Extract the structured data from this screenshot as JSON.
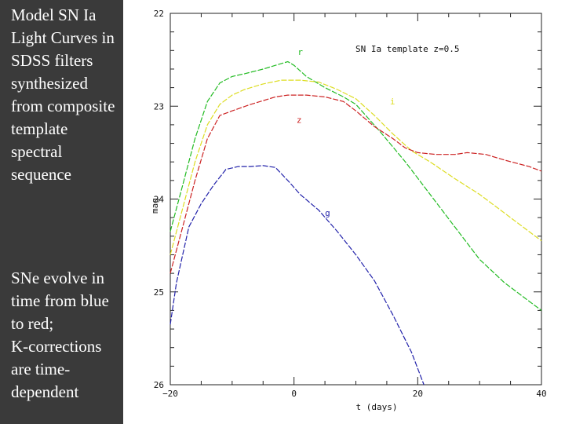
{
  "side_panel": {
    "paragraph1": "Model SN Ia Light Curves in SDSS filters synthesized from composite template spectral sequence",
    "paragraph2_lines": [
      "SNe evolve in time from blue to red;",
      "K-corrections are time-dependent"
    ]
  },
  "chart_data": {
    "type": "line",
    "title": "SN Ia template z=0.5",
    "xlabel": "t (days)",
    "ylabel": "mag",
    "xlim": [
      -20,
      40
    ],
    "ylim": [
      26,
      22
    ],
    "y_inverted": true,
    "x_ticks": [
      -20,
      0,
      20,
      40
    ],
    "x_tick_labels": [
      "−20",
      "0",
      "20",
      "40"
    ],
    "y_ticks": [
      22,
      23,
      24,
      25,
      26
    ],
    "y_tick_labels": [
      "22",
      "23",
      "24",
      "25",
      "26"
    ],
    "grid": false,
    "legend": "inline labels next to curves",
    "series": [
      {
        "name": "r",
        "color": "#22bb22",
        "label_at": [
          0.6,
          22.45
        ],
        "points": [
          [
            -20,
            24.35
          ],
          [
            -18,
            23.85
          ],
          [
            -16,
            23.35
          ],
          [
            -14,
            22.95
          ],
          [
            -12,
            22.75
          ],
          [
            -10,
            22.68
          ],
          [
            -8,
            22.65
          ],
          [
            -5,
            22.6
          ],
          [
            -3,
            22.56
          ],
          [
            -1,
            22.52
          ],
          [
            0,
            22.56
          ],
          [
            2,
            22.68
          ],
          [
            5,
            22.8
          ],
          [
            8,
            22.9
          ],
          [
            10,
            22.98
          ],
          [
            14,
            23.28
          ],
          [
            18,
            23.6
          ],
          [
            22,
            23.95
          ],
          [
            26,
            24.3
          ],
          [
            30,
            24.65
          ],
          [
            34,
            24.9
          ],
          [
            38,
            25.1
          ],
          [
            40,
            25.2
          ]
        ]
      },
      {
        "name": "i",
        "color": "#dddd22",
        "label_at": [
          15.5,
          22.98
        ],
        "points": [
          [
            -20,
            24.6
          ],
          [
            -18,
            24.1
          ],
          [
            -16,
            23.6
          ],
          [
            -14,
            23.2
          ],
          [
            -12,
            22.98
          ],
          [
            -10,
            22.88
          ],
          [
            -8,
            22.82
          ],
          [
            -5,
            22.76
          ],
          [
            -2,
            22.72
          ],
          [
            1,
            22.72
          ],
          [
            4,
            22.74
          ],
          [
            7,
            22.82
          ],
          [
            10,
            22.92
          ],
          [
            13,
            23.1
          ],
          [
            16,
            23.3
          ],
          [
            19,
            23.48
          ],
          [
            22,
            23.6
          ],
          [
            26,
            23.78
          ],
          [
            30,
            23.95
          ],
          [
            34,
            24.15
          ],
          [
            38,
            24.35
          ],
          [
            40,
            24.45
          ]
        ]
      },
      {
        "name": "z",
        "color": "#cc2222",
        "label_at": [
          0.4,
          23.18
        ],
        "points": [
          [
            -20,
            24.8
          ],
          [
            -18,
            24.3
          ],
          [
            -16,
            23.8
          ],
          [
            -14,
            23.35
          ],
          [
            -12,
            23.1
          ],
          [
            -10,
            23.05
          ],
          [
            -7,
            22.98
          ],
          [
            -5,
            22.94
          ],
          [
            -3,
            22.9
          ],
          [
            -1,
            22.88
          ],
          [
            2,
            22.88
          ],
          [
            5,
            22.9
          ],
          [
            8,
            22.95
          ],
          [
            10,
            23.05
          ],
          [
            13,
            23.22
          ],
          [
            16,
            23.35
          ],
          [
            18,
            23.45
          ],
          [
            20,
            23.5
          ],
          [
            23,
            23.52
          ],
          [
            26,
            23.52
          ],
          [
            28,
            23.5
          ],
          [
            31,
            23.52
          ],
          [
            34,
            23.58
          ],
          [
            38,
            23.65
          ],
          [
            40,
            23.7
          ]
        ]
      },
      {
        "name": "g",
        "color": "#2222aa",
        "label_at": [
          5.0,
          24.18
        ],
        "points": [
          [
            -20,
            25.35
          ],
          [
            -19,
            24.9
          ],
          [
            -17,
            24.3
          ],
          [
            -15,
            24.05
          ],
          [
            -13,
            23.85
          ],
          [
            -11,
            23.68
          ],
          [
            -9,
            23.65
          ],
          [
            -7,
            23.65
          ],
          [
            -5,
            23.64
          ],
          [
            -3,
            23.66
          ],
          [
            -1,
            23.8
          ],
          [
            1,
            23.95
          ],
          [
            4,
            24.12
          ],
          [
            7,
            24.35
          ],
          [
            10,
            24.6
          ],
          [
            13,
            24.88
          ],
          [
            16,
            25.25
          ],
          [
            19,
            25.65
          ],
          [
            21,
            26.0
          ]
        ]
      }
    ]
  }
}
